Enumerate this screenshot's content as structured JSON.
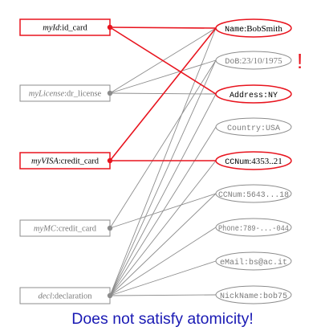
{
  "sources": [
    {
      "id": "myId",
      "name": "myId",
      "type": "id_card",
      "highlighted": true
    },
    {
      "id": "myLicense",
      "name": "myLicense",
      "type": "dr_license",
      "highlighted": false
    },
    {
      "id": "myVISA",
      "name": "myVISA",
      "type": "credit_card",
      "highlighted": true
    },
    {
      "id": "myMC",
      "name": "myMC",
      "type": "credit_card",
      "highlighted": false
    },
    {
      "id": "decl",
      "name": "decl",
      "type": "declaration",
      "highlighted": false
    }
  ],
  "attributes": [
    {
      "id": "name",
      "key": "Name",
      "value": "BobSmith",
      "highlighted": true,
      "mono": false
    },
    {
      "id": "dob",
      "key": "DoB",
      "value": "23/10/1975",
      "highlighted": false,
      "mono": false
    },
    {
      "id": "address",
      "key": "Address",
      "value": "NY",
      "highlighted": true,
      "mono": true
    },
    {
      "id": "country",
      "key": "Country",
      "value": "USA",
      "highlighted": false,
      "mono": true
    },
    {
      "id": "ccnum1",
      "key": "CCNum",
      "value": "4353..21",
      "highlighted": true,
      "mono": false
    },
    {
      "id": "ccnum2",
      "key": "CCNum",
      "value": "5643...18",
      "highlighted": false,
      "mono": true
    },
    {
      "id": "phone",
      "key": "Phone",
      "value": "789-...-044",
      "highlighted": false,
      "mono": true
    },
    {
      "id": "email",
      "key": "eMail",
      "value": "bs@ac.it",
      "highlighted": false,
      "mono": true
    },
    {
      "id": "nickname",
      "key": "NickName",
      "value": "bob75",
      "highlighted": false,
      "mono": true
    }
  ],
  "edges": [
    {
      "from": "myId",
      "to": "name",
      "highlighted": true
    },
    {
      "from": "myId",
      "to": "address",
      "highlighted": true
    },
    {
      "from": "myLicense",
      "to": "name",
      "highlighted": false
    },
    {
      "from": "myLicense",
      "to": "dob",
      "highlighted": false
    },
    {
      "from": "myLicense",
      "to": "address",
      "highlighted": false
    },
    {
      "from": "myVISA",
      "to": "name",
      "highlighted": true
    },
    {
      "from": "myVISA",
      "to": "ccnum1",
      "highlighted": true
    },
    {
      "from": "myMC",
      "to": "dob",
      "highlighted": false
    },
    {
      "from": "myMC",
      "to": "ccnum2",
      "highlighted": false
    },
    {
      "from": "decl",
      "to": "name",
      "highlighted": false
    },
    {
      "from": "decl",
      "to": "dob",
      "highlighted": false
    },
    {
      "from": "decl",
      "to": "address",
      "highlighted": false
    },
    {
      "from": "decl",
      "to": "country",
      "highlighted": false
    },
    {
      "from": "decl",
      "to": "ccnum1",
      "highlighted": false
    },
    {
      "from": "decl",
      "to": "ccnum2",
      "highlighted": false
    },
    {
      "from": "decl",
      "to": "phone",
      "highlighted": false
    },
    {
      "from": "decl",
      "to": "email",
      "highlighted": false
    },
    {
      "from": "decl",
      "to": "nickname",
      "highlighted": false
    }
  ],
  "alert": "!",
  "caption": "Does not satisfy atomicity!",
  "colors": {
    "highlight": "#e8141e",
    "normal": "#8c8c8c",
    "caption": "#1a1ab4"
  }
}
